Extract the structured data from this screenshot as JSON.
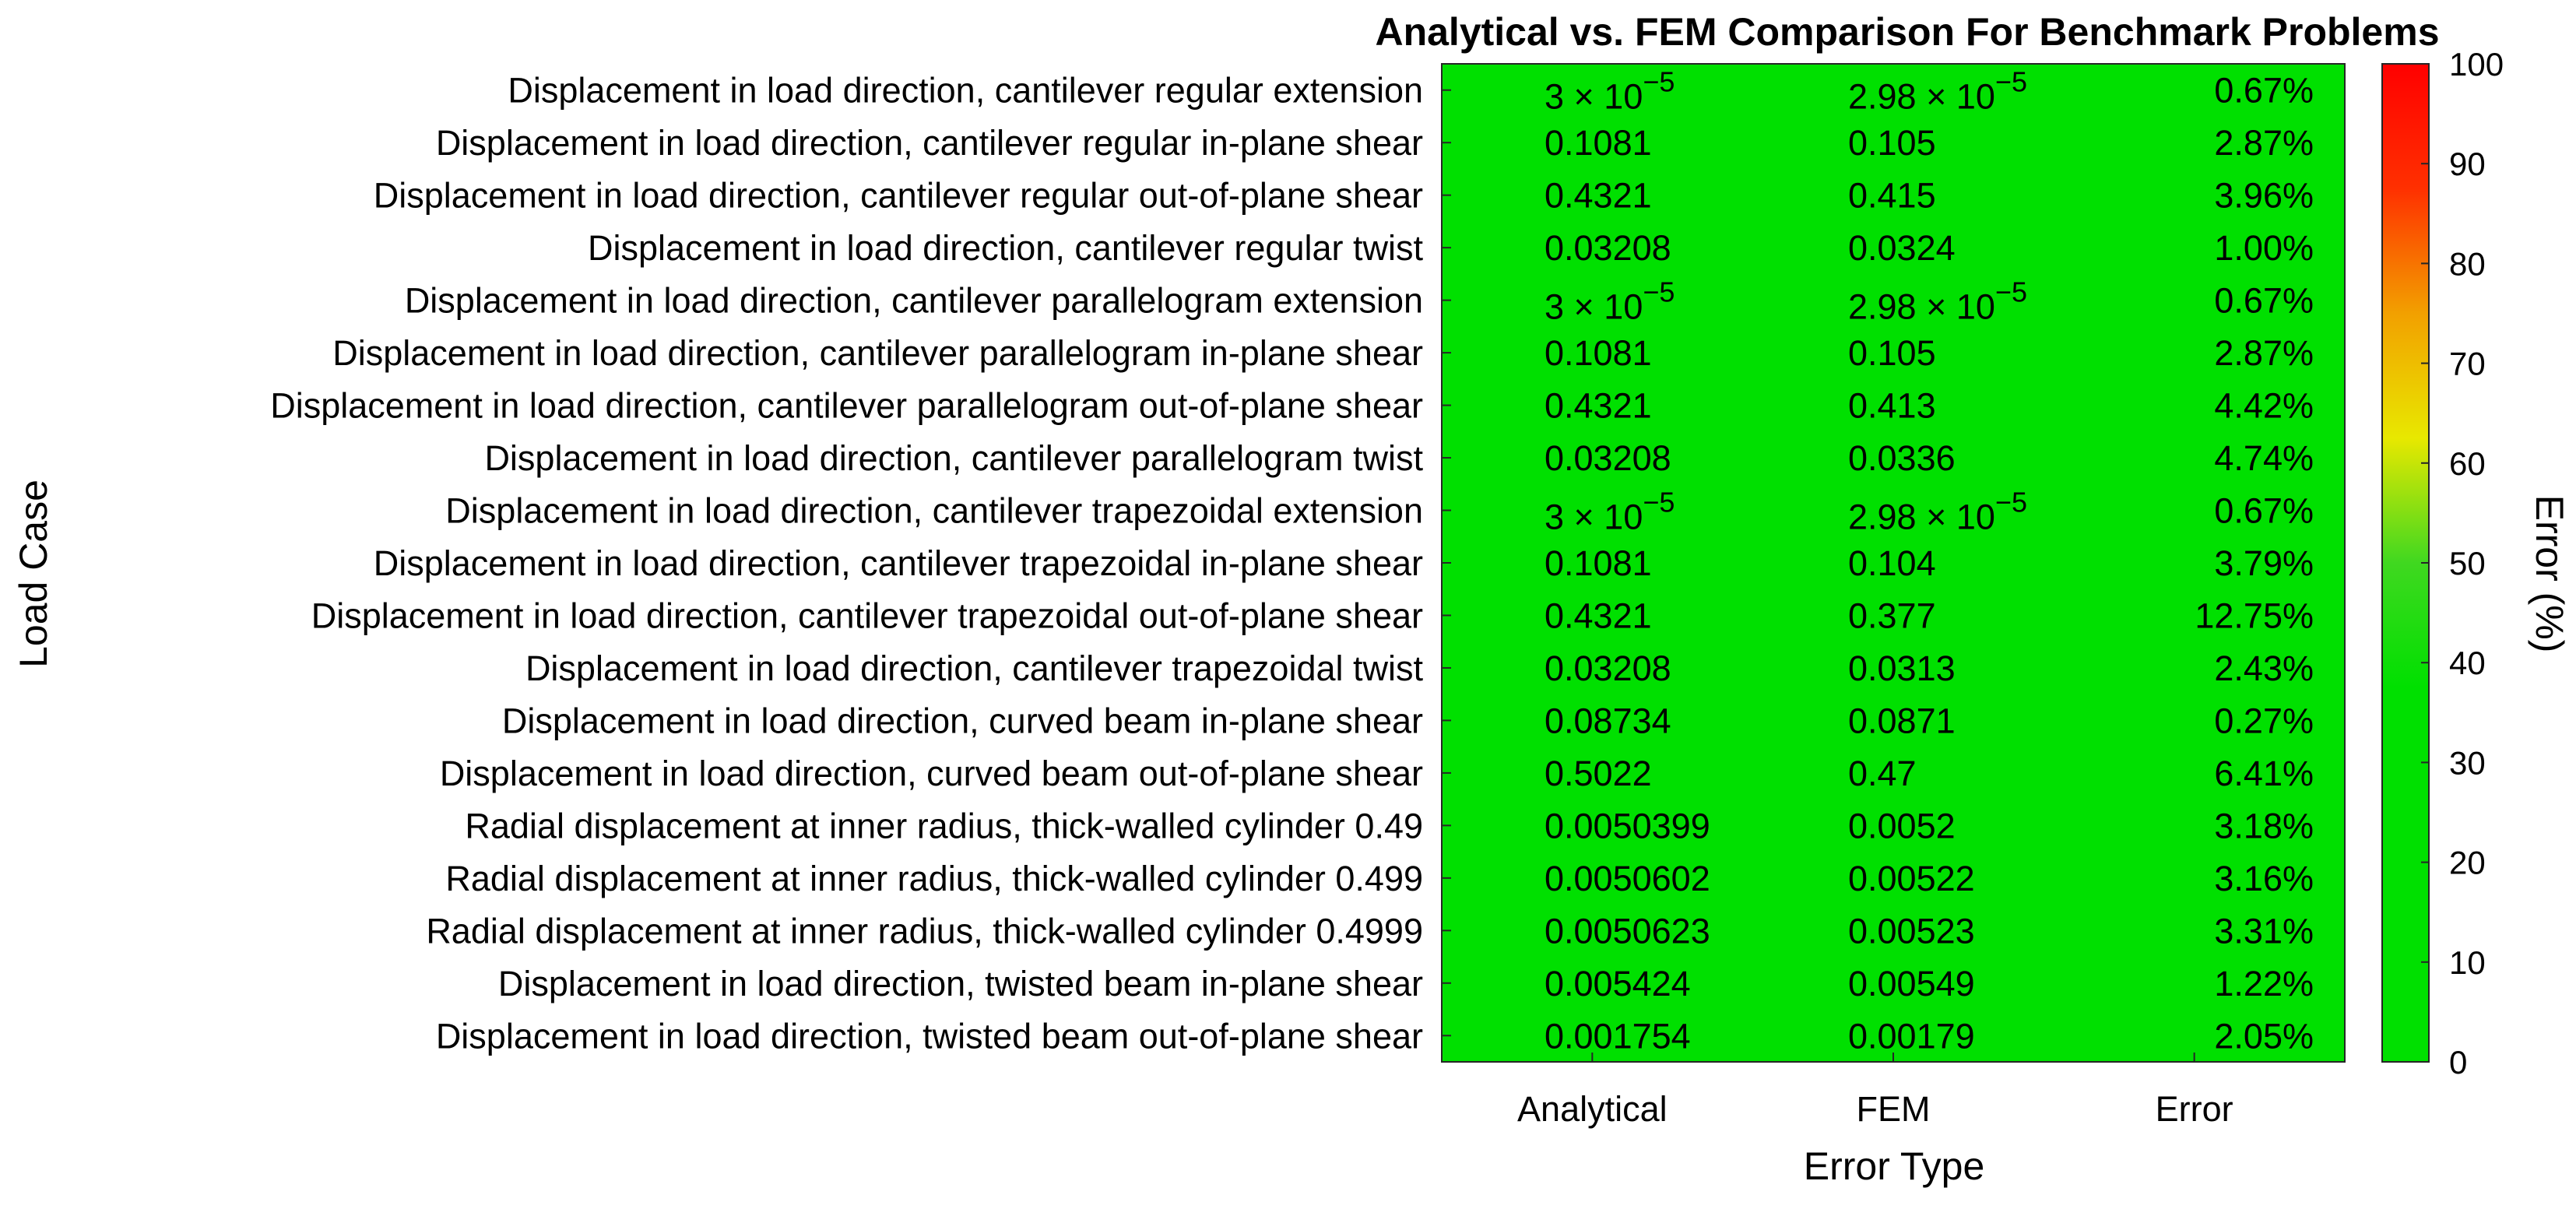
{
  "chart_data": {
    "type": "heatmap",
    "title": "Analytical vs. FEM Comparison For Benchmark Problems",
    "xlabel": "Error Type",
    "ylabel": "Load Case",
    "colorbar_label": "Error (%)",
    "colorbar_ticks": [
      "0",
      "10",
      "20",
      "30",
      "40",
      "50",
      "60",
      "70",
      "80",
      "90",
      "100"
    ],
    "colorbar_range": [
      0,
      100
    ],
    "color_scale": [
      "#00e000",
      "#00e000",
      "#00e000",
      "#00e000",
      "#40d820",
      "#e8e800",
      "#f2a000",
      "#ff3000",
      "#ff0000"
    ],
    "cell_color": "#00e000",
    "columns": [
      "Analytical",
      "FEM",
      "Error"
    ],
    "row_labels": [
      "Displacement in load direction, cantilever regular extension",
      "Displacement in load direction, cantilever regular in-plane shear",
      "Displacement in load direction, cantilever regular out-of-plane shear",
      "Displacement in load direction, cantilever regular twist",
      "Displacement in load direction, cantilever parallelogram extension",
      "Displacement in load direction, cantilever parallelogram in-plane shear",
      "Displacement in load direction, cantilever parallelogram out-of-plane shear",
      "Displacement in load direction, cantilever parallelogram twist",
      "Displacement in load direction, cantilever trapezoidal extension",
      "Displacement in load direction, cantilever trapezoidal in-plane shear",
      "Displacement in load direction, cantilever trapezoidal out-of-plane shear",
      "Displacement in load direction, cantilever trapezoidal twist",
      "Displacement in load direction, curved beam in-plane shear",
      "Displacement in load direction, curved beam out-of-plane shear",
      "Radial displacement at inner radius, thick-walled cylinder 0.49",
      "Radial displacement at inner radius, thick-walled cylinder 0.499",
      "Radial displacement at inner radius, thick-walled cylinder 0.4999",
      "Displacement in load direction, twisted beam in-plane shear",
      "Displacement in load direction, twisted beam out-of-plane shear"
    ],
    "analytical_labels": [
      "3 × 10",
      "0.1081",
      "0.4321",
      "0.03208",
      "3 × 10",
      "0.1081",
      "0.4321",
      "0.03208",
      "3 × 10",
      "0.1081",
      "0.4321",
      "0.03208",
      "0.08734",
      "0.5022",
      "0.0050399",
      "0.0050602",
      "0.0050623",
      "0.005424",
      "0.001754"
    ],
    "fem_labels": [
      "2.98 × 10",
      "0.105",
      "0.415",
      "0.0324",
      "2.98 × 10",
      "0.105",
      "0.413",
      "0.0336",
      "2.98 × 10",
      "0.104",
      "0.377",
      "0.0313",
      "0.0871",
      "0.47",
      "0.0052",
      "0.00522",
      "0.00523",
      "0.00549",
      "0.00179"
    ],
    "error_labels": [
      "0.67%",
      "2.87%",
      "3.96%",
      "1.00%",
      "0.67%",
      "2.87%",
      "4.42%",
      "4.74%",
      "0.67%",
      "3.79%",
      "12.75%",
      "2.43%",
      "0.27%",
      "6.41%",
      "3.18%",
      "3.16%",
      "3.31%",
      "1.22%",
      "2.05%"
    ],
    "exponents": {
      "analytical": [
        "−5",
        "",
        "",
        "",
        "−5",
        "",
        "",
        "",
        "−5",
        "",
        "",
        "",
        "",
        "",
        "",
        "",
        "",
        "",
        ""
      ],
      "fem": [
        "−5",
        "",
        "",
        "",
        "−5",
        "",
        "",
        "",
        "−5",
        "",
        "",
        "",
        "",
        "",
        "",
        "",
        "",
        "",
        ""
      ]
    }
  }
}
